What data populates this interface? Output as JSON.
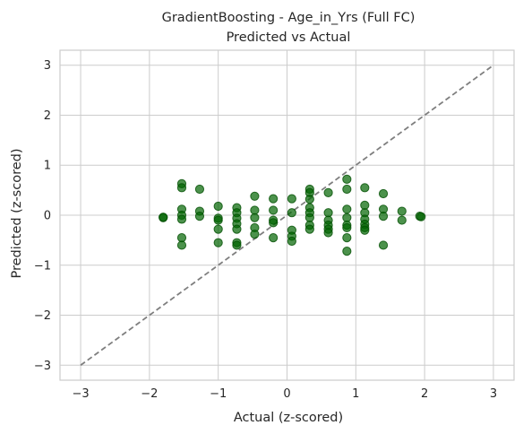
{
  "chart_data": {
    "type": "scatter",
    "title": "GradientBoosting - Age_in_Yrs (Full FC)",
    "subtitle": "Predicted vs Actual",
    "xlabel": "Actual (z-scored)",
    "ylabel": "Predicted (z-scored)",
    "xlim": [
      -3.3,
      3.3
    ],
    "ylim": [
      -3.3,
      3.3
    ],
    "xticks": [
      -3,
      -2,
      -1,
      0,
      1,
      2,
      3
    ],
    "yticks": [
      -3,
      -2,
      -1,
      0,
      1,
      2,
      3
    ],
    "tick_labels": {
      "x": [
        "−3",
        "−2",
        "−1",
        "0",
        "1",
        "2",
        "3"
      ],
      "y": [
        "−3",
        "−2",
        "−1",
        "0",
        "1",
        "2",
        "3"
      ]
    },
    "grid": true,
    "colors": {
      "points": "#006400",
      "reference_line": "#7f7f7f",
      "grid": "#cccccc"
    },
    "reference_line": {
      "x": [
        -3,
        3
      ],
      "y": [
        -3,
        3
      ],
      "style": "dashed"
    },
    "points": [
      [
        -1.8,
        -0.05
      ],
      [
        -1.8,
        -0.04
      ],
      [
        -1.53,
        0.63
      ],
      [
        -1.53,
        0.55
      ],
      [
        -1.53,
        0.12
      ],
      [
        -1.53,
        0.0
      ],
      [
        -1.53,
        -0.08
      ],
      [
        -1.53,
        -0.45
      ],
      [
        -1.53,
        -0.6
      ],
      [
        -1.27,
        0.52
      ],
      [
        -1.27,
        0.08
      ],
      [
        -1.27,
        -0.02
      ],
      [
        -1.0,
        0.18
      ],
      [
        -1.0,
        -0.06
      ],
      [
        -1.0,
        -0.1
      ],
      [
        -1.0,
        -0.28
      ],
      [
        -1.0,
        -0.55
      ],
      [
        -0.73,
        0.15
      ],
      [
        -0.73,
        0.05
      ],
      [
        -0.73,
        -0.06
      ],
      [
        -0.73,
        -0.17
      ],
      [
        -0.73,
        -0.28
      ],
      [
        -0.73,
        -0.55
      ],
      [
        -0.73,
        -0.6
      ],
      [
        -0.47,
        0.38
      ],
      [
        -0.47,
        0.1
      ],
      [
        -0.47,
        -0.05
      ],
      [
        -0.47,
        -0.25
      ],
      [
        -0.47,
        -0.38
      ],
      [
        -0.2,
        0.33
      ],
      [
        -0.2,
        0.1
      ],
      [
        -0.2,
        -0.1
      ],
      [
        -0.2,
        -0.15
      ],
      [
        -0.2,
        -0.45
      ],
      [
        0.07,
        0.33
      ],
      [
        0.07,
        0.05
      ],
      [
        0.07,
        -0.3
      ],
      [
        0.07,
        -0.42
      ],
      [
        0.07,
        -0.52
      ],
      [
        0.33,
        0.52
      ],
      [
        0.33,
        0.45
      ],
      [
        0.33,
        0.32
      ],
      [
        0.33,
        0.15
      ],
      [
        0.33,
        0.05
      ],
      [
        0.33,
        -0.05
      ],
      [
        0.33,
        -0.2
      ],
      [
        0.33,
        -0.28
      ],
      [
        0.6,
        0.45
      ],
      [
        0.6,
        0.05
      ],
      [
        0.6,
        -0.1
      ],
      [
        0.6,
        -0.2
      ],
      [
        0.6,
        -0.28
      ],
      [
        0.6,
        -0.35
      ],
      [
        0.87,
        0.72
      ],
      [
        0.87,
        0.52
      ],
      [
        0.87,
        0.12
      ],
      [
        0.87,
        -0.05
      ],
      [
        0.87,
        -0.2
      ],
      [
        0.87,
        -0.25
      ],
      [
        0.87,
        -0.45
      ],
      [
        0.87,
        -0.72
      ],
      [
        1.13,
        0.55
      ],
      [
        1.13,
        0.2
      ],
      [
        1.13,
        0.05
      ],
      [
        1.13,
        -0.08
      ],
      [
        1.13,
        -0.18
      ],
      [
        1.13,
        -0.25
      ],
      [
        1.13,
        -0.3
      ],
      [
        1.4,
        0.43
      ],
      [
        1.4,
        0.12
      ],
      [
        1.4,
        -0.02
      ],
      [
        1.4,
        -0.6
      ],
      [
        1.67,
        0.08
      ],
      [
        1.67,
        -0.1
      ],
      [
        1.93,
        -0.02
      ],
      [
        1.95,
        -0.03
      ]
    ]
  }
}
